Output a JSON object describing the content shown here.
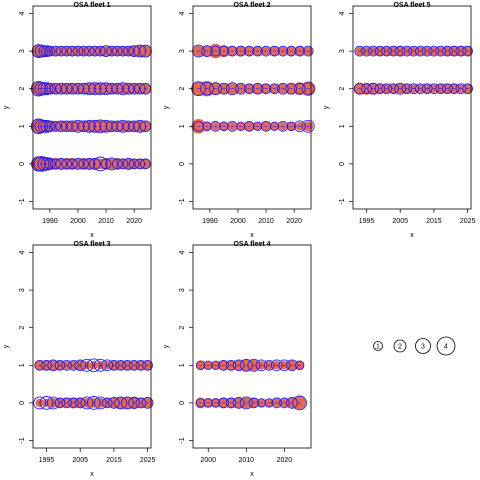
{
  "chart_data": [
    {
      "type": "scatter",
      "title": "OSA fleet 1",
      "xlabel": "x",
      "ylabel": "y",
      "xlim": [
        1984,
        2026
      ],
      "ylim": [
        -1.2,
        4.2
      ],
      "xticks": [
        1990,
        2000,
        2010,
        2020
      ],
      "yticks": [
        -1,
        0,
        1,
        2,
        3,
        4
      ],
      "rows": [
        {
          "y": 0,
          "years": [
            1986,
            1987,
            1988,
            1989,
            1990,
            1992,
            1994,
            1996,
            1998,
            2000,
            2002,
            2004,
            2006,
            2008,
            2010,
            2012,
            2014,
            2016,
            2018,
            2020,
            2022,
            2024
          ],
          "neg": [
            1.0,
            1.0,
            0.9,
            0.8,
            0.7,
            0.6,
            0.6,
            0.6,
            0.6,
            0.5,
            0.6,
            0.6,
            0.6,
            0.5,
            0.6,
            0.5,
            0.6,
            0.5,
            0.6,
            0.5,
            0.5,
            0.5
          ],
          "pos": [
            0.8,
            0.9,
            0.7,
            0.6,
            0.5,
            0.4,
            0.5,
            0.4,
            0.4,
            0.5,
            0.4,
            0.5,
            0.5,
            0.8,
            0.4,
            0.6,
            0.4,
            0.4,
            0.5,
            0.4,
            0.4,
            0.4
          ]
        },
        {
          "y": 1,
          "years": [
            1986,
            1987,
            1988,
            1989,
            1990,
            1992,
            1994,
            1996,
            1998,
            2000,
            2002,
            2004,
            2006,
            2008,
            2010,
            2012,
            2014,
            2016,
            2018,
            2020,
            2022,
            2024
          ],
          "neg": [
            1.0,
            0.8,
            0.6,
            0.6,
            0.5,
            0.5,
            0.5,
            0.5,
            0.5,
            0.5,
            0.5,
            0.6,
            0.6,
            0.6,
            0.6,
            0.5,
            0.5,
            0.5,
            0.5,
            0.5,
            0.6,
            0.5
          ],
          "pos": [
            0.9,
            0.7,
            0.6,
            0.6,
            0.5,
            0.4,
            0.5,
            0.5,
            0.5,
            0.6,
            0.5,
            0.6,
            0.6,
            0.7,
            0.6,
            0.5,
            0.5,
            0.6,
            0.5,
            0.5,
            0.6,
            0.5
          ]
        },
        {
          "y": 2,
          "years": [
            1986,
            1987,
            1988,
            1989,
            1990,
            1992,
            1994,
            1996,
            1998,
            2000,
            2002,
            2004,
            2006,
            2008,
            2010,
            2012,
            2014,
            2016,
            2018,
            2020,
            2022,
            2024
          ],
          "neg": [
            0.9,
            0.8,
            0.6,
            0.6,
            0.5,
            0.5,
            0.5,
            0.5,
            0.5,
            0.5,
            0.5,
            0.6,
            0.6,
            0.6,
            0.6,
            0.5,
            0.5,
            0.5,
            0.5,
            0.5,
            0.5,
            0.5
          ],
          "pos": [
            0.9,
            0.7,
            0.6,
            0.6,
            0.5,
            0.5,
            0.5,
            0.5,
            0.5,
            0.5,
            0.5,
            0.6,
            0.6,
            0.6,
            0.6,
            0.5,
            0.5,
            0.6,
            0.5,
            0.5,
            0.5,
            0.5
          ]
        },
        {
          "y": 3,
          "years": [
            1986,
            1987,
            1988,
            1989,
            1990,
            1992,
            1994,
            1996,
            1998,
            2000,
            2002,
            2004,
            2006,
            2008,
            2010,
            2012,
            2014,
            2016,
            2018,
            2020,
            2022,
            2024
          ],
          "neg": [
            0.8,
            0.7,
            0.5,
            0.5,
            0.4,
            0.4,
            0.4,
            0.4,
            0.4,
            0.4,
            0.4,
            0.4,
            0.4,
            0.4,
            0.4,
            0.4,
            0.4,
            0.4,
            0.4,
            0.5,
            0.6,
            0.6
          ],
          "pos": [
            0.7,
            0.6,
            0.5,
            0.5,
            0.4,
            0.4,
            0.4,
            0.4,
            0.4,
            0.4,
            0.4,
            0.4,
            0.4,
            0.4,
            0.5,
            0.4,
            0.4,
            0.4,
            0.4,
            0.5,
            0.6,
            0.6
          ]
        }
      ]
    },
    {
      "type": "scatter",
      "title": "OSA fleet 2",
      "xlabel": "x",
      "ylabel": "y",
      "xlim": [
        1984,
        2026
      ],
      "ylim": [
        -1.2,
        4.2
      ],
      "xticks": [
        1990,
        2000,
        2010,
        2020
      ],
      "yticks": [
        -1,
        0,
        1,
        2,
        3,
        4
      ],
      "rows": [
        {
          "y": 1,
          "years": [
            1986,
            1989,
            1992,
            1995,
            1998,
            2001,
            2004,
            2007,
            2010,
            2013,
            2016,
            2019,
            2022,
            2025
          ],
          "neg": [
            0.9,
            0.4,
            0.3,
            0.4,
            0.3,
            0.3,
            0.4,
            0.3,
            0.4,
            0.3,
            0.3,
            0.4,
            0.3,
            0.4
          ],
          "pos": [
            0.4,
            0.3,
            0.4,
            0.3,
            0.4,
            0.3,
            0.4,
            0.3,
            0.4,
            0.3,
            0.4,
            0.3,
            0.5,
            0.6
          ]
        },
        {
          "y": 2,
          "years": [
            1986,
            1989,
            1992,
            1995,
            1998,
            2001,
            2004,
            2007,
            2010,
            2013,
            2016,
            2019,
            2022,
            2025
          ],
          "neg": [
            0.9,
            1.0,
            0.7,
            0.5,
            0.5,
            0.4,
            0.4,
            0.5,
            0.4,
            0.4,
            0.4,
            0.5,
            0.7,
            0.9
          ],
          "pos": [
            0.8,
            0.7,
            0.6,
            0.5,
            0.6,
            0.5,
            0.4,
            0.5,
            0.4,
            0.4,
            0.5,
            0.5,
            0.5,
            0.6
          ]
        },
        {
          "y": 3,
          "years": [
            1986,
            1989,
            1992,
            1995,
            1998,
            2001,
            2004,
            2007,
            2010,
            2013,
            2016,
            2019,
            2022,
            2025
          ],
          "neg": [
            0.5,
            0.5,
            0.9,
            0.6,
            0.4,
            0.5,
            0.4,
            0.4,
            0.3,
            0.4,
            0.3,
            0.4,
            0.4,
            0.3
          ],
          "pos": [
            0.6,
            0.5,
            0.4,
            0.4,
            0.4,
            0.4,
            0.4,
            0.4,
            0.4,
            0.4,
            0.4,
            0.4,
            0.4,
            0.4
          ]
        }
      ]
    },
    {
      "type": "scatter",
      "title": "OSA fleet 5",
      "xlabel": "x",
      "ylabel": "y",
      "xlim": [
        1991,
        2026
      ],
      "ylim": [
        -1.2,
        4.2
      ],
      "xticks": [
        1995,
        2005,
        2015,
        2025
      ],
      "yticks": [
        -1,
        0,
        1,
        2,
        3,
        4
      ],
      "rows": [
        {
          "y": 2,
          "years": [
            1993,
            1995,
            1997,
            1999,
            2001,
            2003,
            2005,
            2007,
            2009,
            2011,
            2013,
            2015,
            2017,
            2019,
            2021,
            2023,
            2025
          ],
          "neg": [
            0.6,
            0.6,
            0.6,
            0.5,
            0.4,
            0.4,
            0.4,
            0.4,
            0.3,
            0.3,
            0.4,
            0.3,
            0.4,
            0.4,
            0.4,
            0.3,
            0.4
          ],
          "pos": [
            0.5,
            0.4,
            0.5,
            0.4,
            0.4,
            0.4,
            0.5,
            0.4,
            0.4,
            0.4,
            0.4,
            0.4,
            0.4,
            0.4,
            0.4,
            0.4,
            0.4
          ]
        },
        {
          "y": 3,
          "years": [
            1993,
            1995,
            1997,
            1999,
            2001,
            2003,
            2005,
            2007,
            2009,
            2011,
            2013,
            2015,
            2017,
            2019,
            2021,
            2023,
            2025
          ],
          "neg": [
            0.3,
            0.3,
            0.3,
            0.4,
            0.4,
            0.4,
            0.5,
            0.3,
            0.3,
            0.3,
            0.3,
            0.3,
            0.3,
            0.4,
            0.5,
            0.5,
            0.4
          ],
          "pos": [
            0.4,
            0.4,
            0.4,
            0.4,
            0.4,
            0.4,
            0.4,
            0.4,
            0.4,
            0.4,
            0.4,
            0.4,
            0.4,
            0.4,
            0.4,
            0.4,
            0.4
          ]
        }
      ]
    },
    {
      "type": "scatter",
      "title": "OSA fleet 3",
      "xlabel": "x",
      "ylabel": "y",
      "xlim": [
        1991,
        2026
      ],
      "ylim": [
        -1.2,
        4.2
      ],
      "xticks": [
        1995,
        2005,
        2015,
        2025
      ],
      "yticks": [
        -1,
        0,
        1,
        2,
        3,
        4
      ],
      "rows": [
        {
          "y": 0,
          "years": [
            1993,
            1995,
            1997,
            1999,
            2001,
            2003,
            2005,
            2007,
            2009,
            2011,
            2013,
            2015,
            2017,
            2019,
            2021,
            2023,
            2025
          ],
          "neg": [
            0.3,
            0.3,
            0.4,
            0.4,
            0.4,
            0.5,
            0.5,
            0.4,
            0.4,
            0.4,
            0.4,
            0.4,
            0.6,
            0.6,
            0.7,
            0.5,
            0.4
          ],
          "pos": [
            0.6,
            0.7,
            0.6,
            0.4,
            0.4,
            0.4,
            0.4,
            0.6,
            0.7,
            0.6,
            0.4,
            0.5,
            0.6,
            0.6,
            0.5,
            0.4,
            0.5
          ]
        },
        {
          "y": 1,
          "years": [
            1993,
            1995,
            1997,
            1999,
            2001,
            2003,
            2005,
            2007,
            2009,
            2011,
            2013,
            2015,
            2017,
            2019,
            2021,
            2023,
            2025
          ],
          "neg": [
            0.4,
            0.5,
            0.5,
            0.4,
            0.3,
            0.3,
            0.4,
            0.3,
            0.3,
            0.3,
            0.3,
            0.4,
            0.4,
            0.4,
            0.4,
            0.4,
            0.4
          ],
          "pos": [
            0.4,
            0.4,
            0.5,
            0.4,
            0.4,
            0.4,
            0.5,
            0.6,
            0.7,
            0.6,
            0.5,
            0.4,
            0.4,
            0.4,
            0.4,
            0.4,
            0.4
          ]
        }
      ]
    },
    {
      "type": "scatter",
      "title": "OSA fleet 4",
      "xlabel": "x",
      "ylabel": "y",
      "xlim": [
        1996,
        2027
      ],
      "ylim": [
        -1.2,
        4.2
      ],
      "xticks": [
        2000,
        2010,
        2020
      ],
      "yticks": [
        -1,
        0,
        1,
        2,
        3,
        4
      ],
      "rows": [
        {
          "y": 0,
          "years": [
            1998,
            2000,
            2002,
            2004,
            2006,
            2008,
            2010,
            2012,
            2014,
            2016,
            2018,
            2020,
            2022,
            2024
          ],
          "neg": [
            0.5,
            0.4,
            0.4,
            0.5,
            0.5,
            0.5,
            0.5,
            0.4,
            0.3,
            0.3,
            0.3,
            0.3,
            0.4,
            0.7
          ],
          "pos": [
            0.3,
            0.3,
            0.3,
            0.4,
            0.4,
            0.5,
            0.6,
            0.4,
            0.3,
            0.3,
            0.4,
            0.4,
            0.5,
            0.8
          ]
        },
        {
          "y": 1,
          "years": [
            1998,
            2000,
            2002,
            2004,
            2006,
            2008,
            2010,
            2012,
            2014,
            2016,
            2018,
            2020,
            2022,
            2024
          ],
          "neg": [
            0.4,
            0.3,
            0.3,
            0.4,
            0.4,
            0.4,
            0.6,
            0.5,
            0.3,
            0.3,
            0.3,
            0.3,
            0.4,
            0.4
          ],
          "pos": [
            0.3,
            0.3,
            0.3,
            0.4,
            0.4,
            0.5,
            0.6,
            0.6,
            0.5,
            0.4,
            0.5,
            0.5,
            0.5,
            0.3
          ]
        }
      ]
    }
  ],
  "size_legend": {
    "labels": [
      "1",
      "2",
      "3",
      "4"
    ]
  },
  "colors": {
    "negative": "#e8684a",
    "positive": "#1f1fff",
    "axis": "#000000"
  }
}
